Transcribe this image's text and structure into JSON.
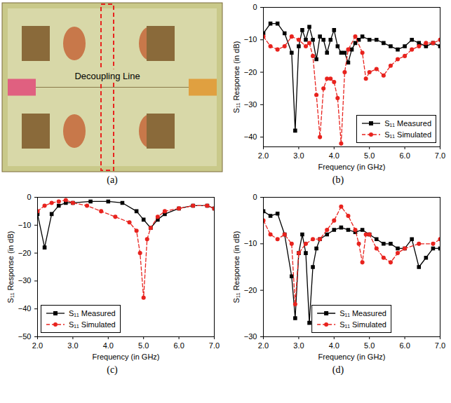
{
  "chart_data": [
    {
      "type": "photo",
      "title": "(a)",
      "annotations": [
        "Decoupling Line"
      ]
    },
    {
      "type": "line",
      "title": "(b)",
      "xlabel": "Frequency (in GHz)",
      "ylabel": "S₁₁ Response (in dB)",
      "xlim": [
        2,
        7
      ],
      "xticks": [
        2,
        3,
        4,
        5,
        6,
        7
      ],
      "ylim": [
        -43,
        0
      ],
      "yticks": [
        0,
        -10,
        -20,
        -30,
        -40
      ],
      "legend": "lower right",
      "series": [
        {
          "name": "S₁₁ Measured",
          "color": "#000000",
          "marker": "square",
          "line_style": "solid",
          "x": [
            2.0,
            2.2,
            2.4,
            2.6,
            2.8,
            2.9,
            3.0,
            3.1,
            3.2,
            3.3,
            3.4,
            3.5,
            3.6,
            3.7,
            3.8,
            3.9,
            4.0,
            4.1,
            4.2,
            4.3,
            4.4,
            4.5,
            4.6,
            4.7,
            4.8,
            5.0,
            5.2,
            5.4,
            5.6,
            5.8,
            6.0,
            6.2,
            6.4,
            6.6,
            6.8,
            7.0
          ],
          "values": [
            -8,
            -5,
            -5,
            -8,
            -14,
            -38,
            -12,
            -7,
            -10,
            -6,
            -10,
            -16,
            -9,
            -10,
            -14,
            -10,
            -7,
            -12,
            -14,
            -14,
            -17,
            -13,
            -11,
            -10,
            -9,
            -10,
            -10,
            -11,
            -12,
            -13,
            -12,
            -10,
            -11,
            -12,
            -11,
            -12
          ]
        },
        {
          "name": "S₁₁ Simulated",
          "color": "#e8231e",
          "marker": "circle",
          "line_style": "dashed",
          "x": [
            2.0,
            2.2,
            2.4,
            2.6,
            2.8,
            3.0,
            3.2,
            3.3,
            3.4,
            3.5,
            3.6,
            3.7,
            3.8,
            3.9,
            4.0,
            4.1,
            4.2,
            4.3,
            4.4,
            4.6,
            4.8,
            4.9,
            5.0,
            5.2,
            5.4,
            5.6,
            5.8,
            6.0,
            6.2,
            6.4,
            6.6,
            6.8,
            7.0
          ],
          "values": [
            -9,
            -12,
            -13,
            -12,
            -9,
            -10,
            -12,
            -11,
            -15,
            -27,
            -40,
            -25,
            -22,
            -22,
            -23,
            -28,
            -42,
            -20,
            -13,
            -9,
            -14,
            -22,
            -20,
            -19,
            -21,
            -18,
            -16,
            -15,
            -13,
            -12,
            -11,
            -11,
            -10
          ]
        }
      ]
    },
    {
      "type": "line",
      "title": "(c)",
      "xlabel": "Frequency (in GHz)",
      "ylabel": "S₁₁ Response (in dB)",
      "xlim": [
        2,
        7
      ],
      "xticks": [
        2,
        3,
        4,
        5,
        6,
        7
      ],
      "ylim": [
        -50,
        0
      ],
      "yticks": [
        0,
        -10,
        -20,
        -30,
        -40,
        -50
      ],
      "legend": "lower left",
      "series": [
        {
          "name": "S₁₁ Measured",
          "color": "#000000",
          "marker": "square",
          "line_style": "solid",
          "x": [
            2.0,
            2.2,
            2.4,
            2.6,
            2.8,
            3.0,
            3.5,
            4.0,
            4.4,
            4.8,
            5.0,
            5.2,
            5.4,
            5.6,
            6.0,
            6.4,
            6.8,
            7.0
          ],
          "values": [
            -6,
            -18,
            -6,
            -3,
            -2,
            -2,
            -1.5,
            -1.5,
            -2,
            -5,
            -8,
            -11,
            -8,
            -6,
            -4,
            -3,
            -3,
            -4
          ]
        },
        {
          "name": "S₁₁ Simulated",
          "color": "#e8231e",
          "marker": "circle",
          "line_style": "dashed",
          "x": [
            2.0,
            2.2,
            2.4,
            2.6,
            2.8,
            3.0,
            3.4,
            3.8,
            4.2,
            4.6,
            4.8,
            4.9,
            5.0,
            5.1,
            5.2,
            5.4,
            5.6,
            6.0,
            6.4,
            6.8,
            7.0
          ],
          "values": [
            -5,
            -3,
            -2,
            -1.5,
            -1,
            -2,
            -3,
            -5,
            -7,
            -9,
            -12,
            -20,
            -36,
            -15,
            -11,
            -7,
            -5,
            -4,
            -3,
            -3,
            -4
          ]
        }
      ]
    },
    {
      "type": "line",
      "title": "(d)",
      "xlabel": "Frequency (in GHz)",
      "ylabel": "S₁₁ Response (in dB)",
      "xlim": [
        2,
        7
      ],
      "xticks": [
        2,
        3,
        4,
        5,
        6,
        7
      ],
      "ylim": [
        -30,
        0
      ],
      "yticks": [
        0,
        -10,
        -20,
        -30
      ],
      "legend": "bottom",
      "series": [
        {
          "name": "S₁₁ Measured",
          "color": "#000000",
          "marker": "square",
          "line_style": "solid",
          "x": [
            2.0,
            2.2,
            2.4,
            2.6,
            2.8,
            2.9,
            3.0,
            3.1,
            3.2,
            3.3,
            3.4,
            3.5,
            3.6,
            3.8,
            4.0,
            4.2,
            4.4,
            4.6,
            4.8,
            5.0,
            5.2,
            5.4,
            5.6,
            5.8,
            6.0,
            6.2,
            6.4,
            6.6,
            6.8,
            7.0
          ],
          "values": [
            -3,
            -4,
            -3.5,
            -8,
            -17,
            -26,
            -12,
            -8,
            -12,
            -27,
            -15,
            -11,
            -9,
            -8,
            -7,
            -6.5,
            -7,
            -7.5,
            -7,
            -8,
            -9,
            -10,
            -10,
            -11,
            -11,
            -9,
            -15,
            -13,
            -11,
            -11
          ]
        },
        {
          "name": "S₁₁ Simulated",
          "color": "#e8231e",
          "marker": "circle",
          "line_style": "dashed",
          "x": [
            2.0,
            2.2,
            2.4,
            2.6,
            2.8,
            2.9,
            3.0,
            3.2,
            3.4,
            3.6,
            3.8,
            4.0,
            4.2,
            4.4,
            4.6,
            4.7,
            4.8,
            4.9,
            5.0,
            5.2,
            5.4,
            5.6,
            5.8,
            6.0,
            6.4,
            6.8,
            7.0
          ],
          "values": [
            -5,
            -8,
            -9,
            -8,
            -10,
            -23,
            -12,
            -10,
            -9,
            -9,
            -7,
            -5,
            -2,
            -4,
            -7,
            -10,
            -14,
            -8,
            -8,
            -11,
            -13,
            -14,
            -12,
            -11,
            -10,
            -10,
            -9
          ]
        }
      ]
    }
  ]
}
